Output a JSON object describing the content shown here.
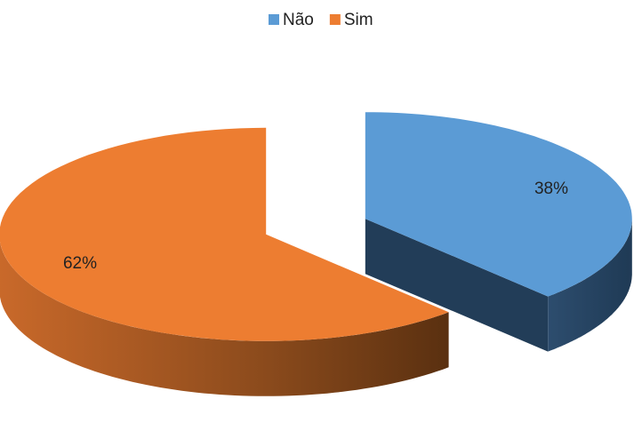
{
  "chart_data": {
    "type": "pie",
    "categories": [
      "Não",
      "Sim"
    ],
    "values": [
      38,
      62
    ],
    "value_labels": [
      "38%",
      "62%"
    ],
    "colors": [
      "#5b9bd5",
      "#ed7d31"
    ],
    "legend": "top"
  }
}
